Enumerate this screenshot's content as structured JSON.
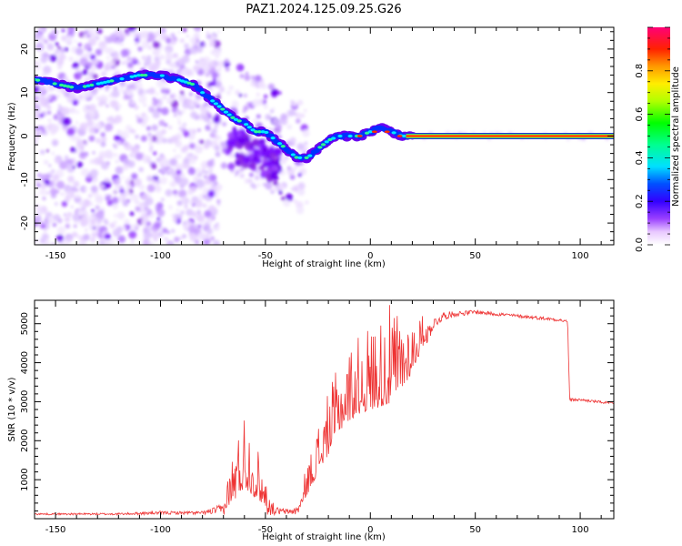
{
  "title": "PAZ1.2024.125.09.25.G26",
  "colors": {
    "snr_line": "#ee3333",
    "axis": "#000000",
    "spectrogram_strong": "#ff2222",
    "spectrogram_mid": "#22ff44",
    "spectrogram_weak": "#8a2be2"
  },
  "chart_data": [
    {
      "type": "heatmap",
      "name": "spectrogram",
      "xlabel": "Height of straight line (km)",
      "ylabel": "Frequency (Hz)",
      "xlim": [
        -160,
        116
      ],
      "ylim": [
        -25,
        25
      ],
      "xticks": [
        -150,
        -100,
        -50,
        0,
        50,
        100
      ],
      "yticks": [
        -20,
        -10,
        0,
        10,
        20
      ],
      "colorbar": {
        "label": "Normalized spectral amplitude",
        "range": [
          0,
          1
        ],
        "ticks": [
          "0.0",
          "0.2",
          "0.4",
          "0.6",
          "0.8"
        ],
        "colormap": "hsv-rainbow"
      },
      "ridge": {
        "x": [
          -160,
          -150,
          -140,
          -130,
          -120,
          -110,
          -100,
          -92,
          -85,
          -80,
          -75,
          -70,
          -65,
          -60,
          -55,
          -50,
          -45,
          -40,
          -35,
          -30,
          -25,
          -20,
          -15,
          -10,
          -5,
          0,
          5,
          10,
          15,
          20,
          116
        ],
        "y": [
          13,
          12,
          11,
          12,
          13,
          14,
          14,
          13,
          12,
          10,
          8,
          6,
          4,
          3,
          1,
          1,
          -1,
          -3,
          -5,
          -5,
          -3,
          -1,
          0,
          0,
          0,
          1,
          2,
          1,
          0,
          0,
          0
        ]
      }
    },
    {
      "type": "line",
      "name": "snr",
      "xlabel": "Height of straight line (km)",
      "ylabel": "SNR (10 * v/v)",
      "xlim": [
        -160,
        116
      ],
      "ylim": [
        0,
        5600
      ],
      "xticks": [
        -150,
        -100,
        -50,
        0,
        50,
        100
      ],
      "yticks": [
        1000,
        2000,
        3000,
        4000,
        5000
      ],
      "envelope": {
        "x": [
          -160,
          -120,
          -100,
          -80,
          -70,
          -65,
          -60,
          -55,
          -50,
          -45,
          -40,
          -35,
          -30,
          -25,
          -20,
          -15,
          -10,
          -5,
          0,
          5,
          10,
          15,
          20,
          25,
          30,
          35,
          40,
          50,
          60,
          70,
          80,
          90,
          94,
          95,
          100,
          116
        ],
        "base": [
          120,
          120,
          150,
          150,
          250,
          600,
          1000,
          700,
          400,
          200,
          180,
          200,
          700,
          1300,
          1800,
          2400,
          2700,
          2900,
          3000,
          3100,
          3200,
          3500,
          3900,
          4500,
          5000,
          5200,
          5250,
          5300,
          5250,
          5200,
          5150,
          5100,
          5050,
          3050,
          3050,
          2950
        ],
        "amp": [
          30,
          40,
          60,
          60,
          200,
          900,
          1300,
          1000,
          450,
          150,
          100,
          150,
          500,
          800,
          1000,
          1100,
          1200,
          1300,
          1400,
          1500,
          1600,
          1300,
          900,
          500,
          200,
          150,
          100,
          80,
          70,
          60,
          60,
          60,
          60,
          50,
          50,
          50
        ]
      }
    }
  ]
}
